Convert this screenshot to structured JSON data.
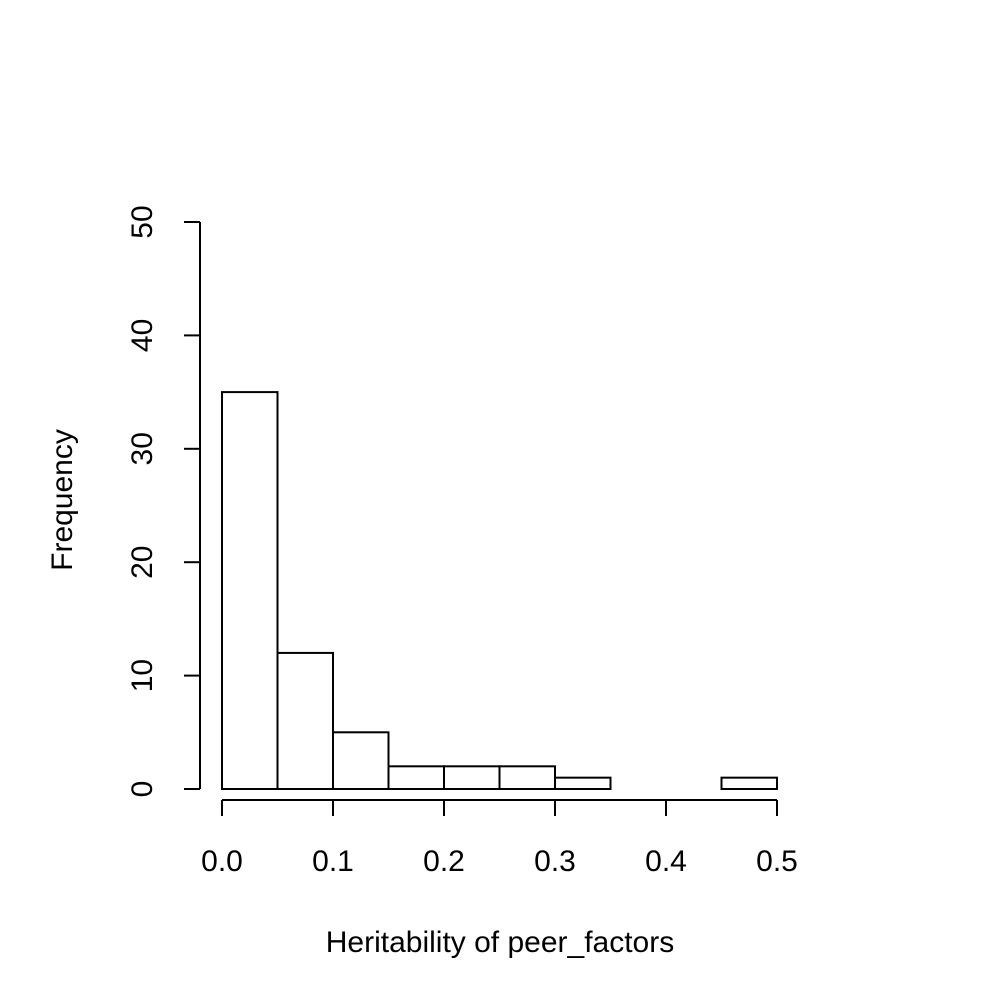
{
  "chart_data": {
    "type": "bar",
    "subtype": "histogram",
    "title": "",
    "xlabel": "Heritability of peer_factors",
    "ylabel": "Frequency",
    "bins": [
      {
        "start": 0.0,
        "end": 0.05,
        "count": 35
      },
      {
        "start": 0.05,
        "end": 0.1,
        "count": 12
      },
      {
        "start": 0.1,
        "end": 0.15,
        "count": 5
      },
      {
        "start": 0.15,
        "end": 0.2,
        "count": 2
      },
      {
        "start": 0.2,
        "end": 0.25,
        "count": 2
      },
      {
        "start": 0.25,
        "end": 0.3,
        "count": 2
      },
      {
        "start": 0.3,
        "end": 0.35,
        "count": 1
      },
      {
        "start": 0.35,
        "end": 0.4,
        "count": 0
      },
      {
        "start": 0.4,
        "end": 0.45,
        "count": 0
      },
      {
        "start": 0.45,
        "end": 0.5,
        "count": 1
      }
    ],
    "xlim": [
      0.0,
      0.5
    ],
    "ylim": [
      0,
      50
    ],
    "x_ticks": [
      0.0,
      0.1,
      0.2,
      0.3,
      0.4,
      0.5
    ],
    "x_tick_labels": [
      "0.0",
      "0.1",
      "0.2",
      "0.3",
      "0.4",
      "0.5"
    ],
    "y_ticks": [
      0,
      10,
      20,
      30,
      40,
      50
    ],
    "y_tick_labels": [
      "0",
      "10",
      "20",
      "30",
      "40",
      "50"
    ],
    "grid": false,
    "legend": "none",
    "bar_fill": "#ffffff",
    "bar_stroke": "#000000"
  }
}
